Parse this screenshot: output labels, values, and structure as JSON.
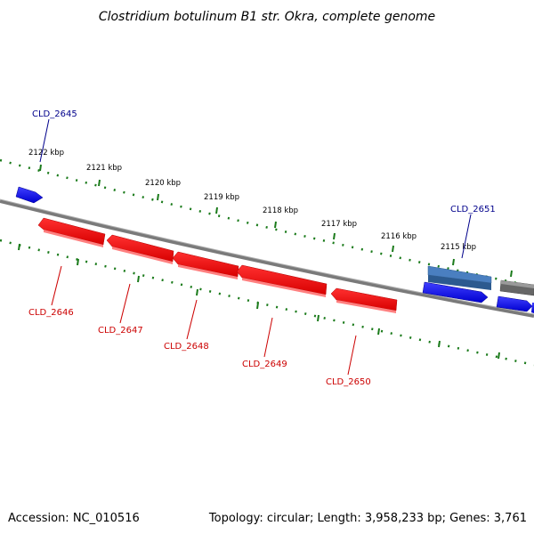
{
  "title": "Clostridium botulinum B1 str. Okra, complete genome",
  "footer": {
    "accession": "Accession: NC_010516",
    "summary": "Topology: circular; Length: 3,958,233 bp; Genes: 3,761"
  },
  "colors": {
    "forward_gene": "#0000ff",
    "forward_gene_selected": "#4a7fc0",
    "reverse_gene": "#ff0000",
    "other_gene": "#666666",
    "backbone": "#7a7a7a",
    "ticks": "#1a7a1a",
    "forward_label": "#00008b",
    "reverse_label": "#cc0000"
  },
  "ticks": [
    {
      "label": "2122 kbp"
    },
    {
      "label": "2121 kbp"
    },
    {
      "label": "2120 kbp"
    },
    {
      "label": "2119 kbp"
    },
    {
      "label": "2118 kbp"
    },
    {
      "label": "2117 kbp"
    },
    {
      "label": "2116 kbp"
    },
    {
      "label": "2115 kbp"
    }
  ],
  "genes": [
    {
      "id": "CLD_2645",
      "strand": "forward"
    },
    {
      "id": "CLD_2646",
      "strand": "reverse"
    },
    {
      "id": "CLD_2647",
      "strand": "reverse"
    },
    {
      "id": "CLD_2648",
      "strand": "reverse"
    },
    {
      "id": "CLD_2649",
      "strand": "reverse"
    },
    {
      "id": "CLD_2650",
      "strand": "reverse"
    },
    {
      "id": "CLD_2651",
      "strand": "forward"
    }
  ]
}
